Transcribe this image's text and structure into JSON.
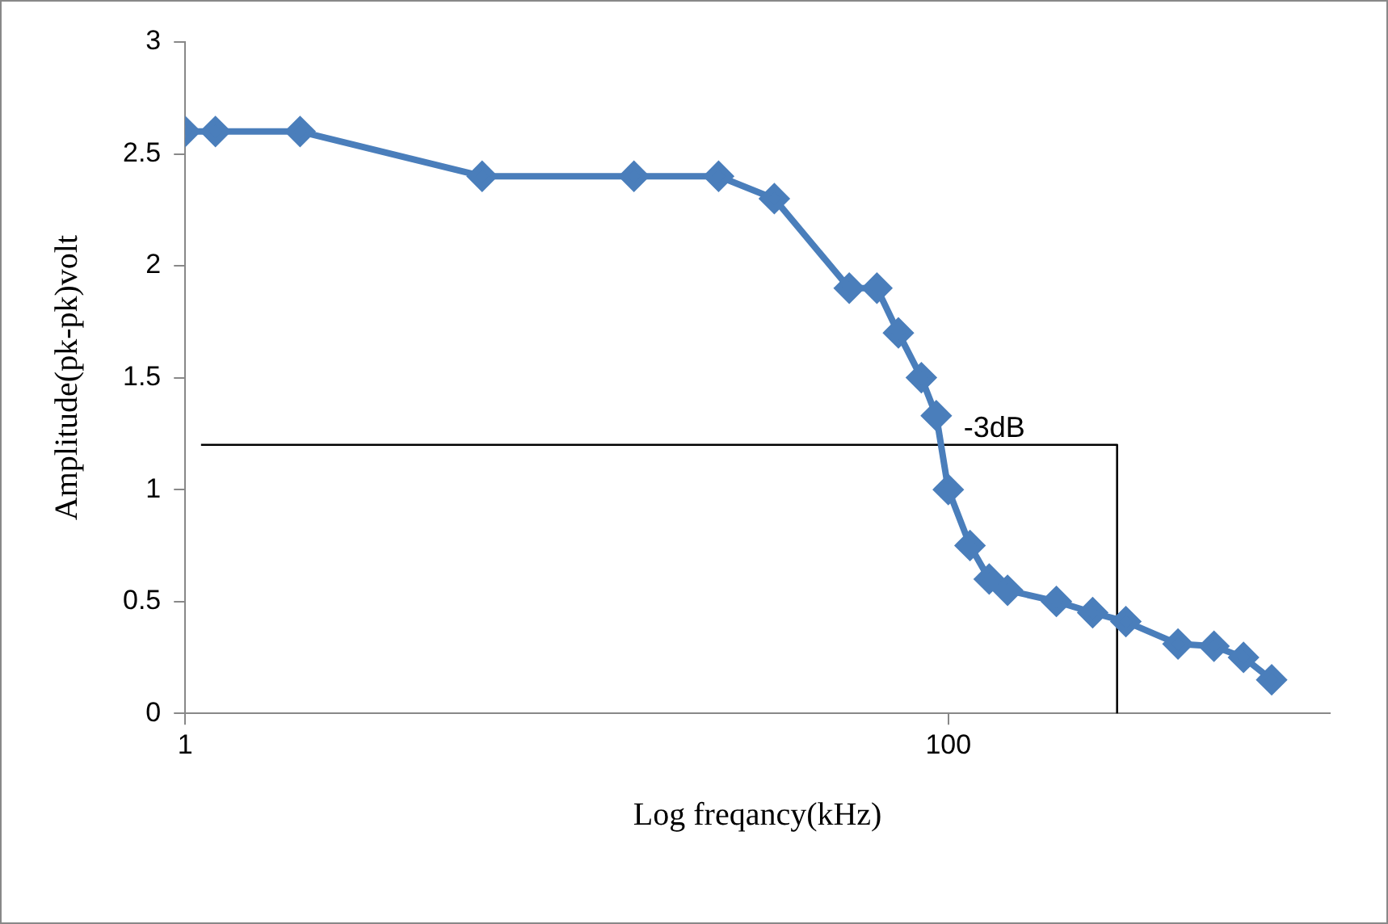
{
  "chart_data": {
    "type": "line",
    "xlabel": "Log freqancy(kHz)",
    "ylabel": "Amplitude(pk-pk)volt",
    "log": "x",
    "xlim": [
      1,
      1000
    ],
    "xticks": [
      1,
      100
    ],
    "ylim": [
      0,
      3
    ],
    "yticks": [
      0,
      0.5,
      1,
      1.5,
      2,
      2.5,
      3
    ],
    "grid": false,
    "legend": false,
    "marker": "diamond",
    "line_style": "solid",
    "annotations": [
      {
        "text": "-3dB",
        "x": 132,
        "y": 1.2
      }
    ],
    "series": [
      {
        "color": "#4a7ebb",
        "x": [
          1,
          1.2,
          2,
          6,
          15,
          25,
          35,
          55,
          65,
          74,
          85,
          93,
          100,
          114,
          128,
          143,
          192,
          239,
          292,
          400,
          497,
          594,
          704
        ],
        "values": [
          2.6,
          2.6,
          2.6,
          2.4,
          2.4,
          2.4,
          2.3,
          1.9,
          1.9,
          1.7,
          1.5,
          1.33,
          1,
          0.75,
          0.6,
          0.55,
          0.5,
          0.45,
          0.41,
          0.31,
          0.3,
          0.25,
          0.15
        ]
      },
      {
        "type": "line",
        "color": "#000000",
        "marker": "none",
        "x": [
          1.1,
          277,
          277
        ],
        "values": [
          1.2,
          1.2,
          0
        ]
      }
    ]
  }
}
